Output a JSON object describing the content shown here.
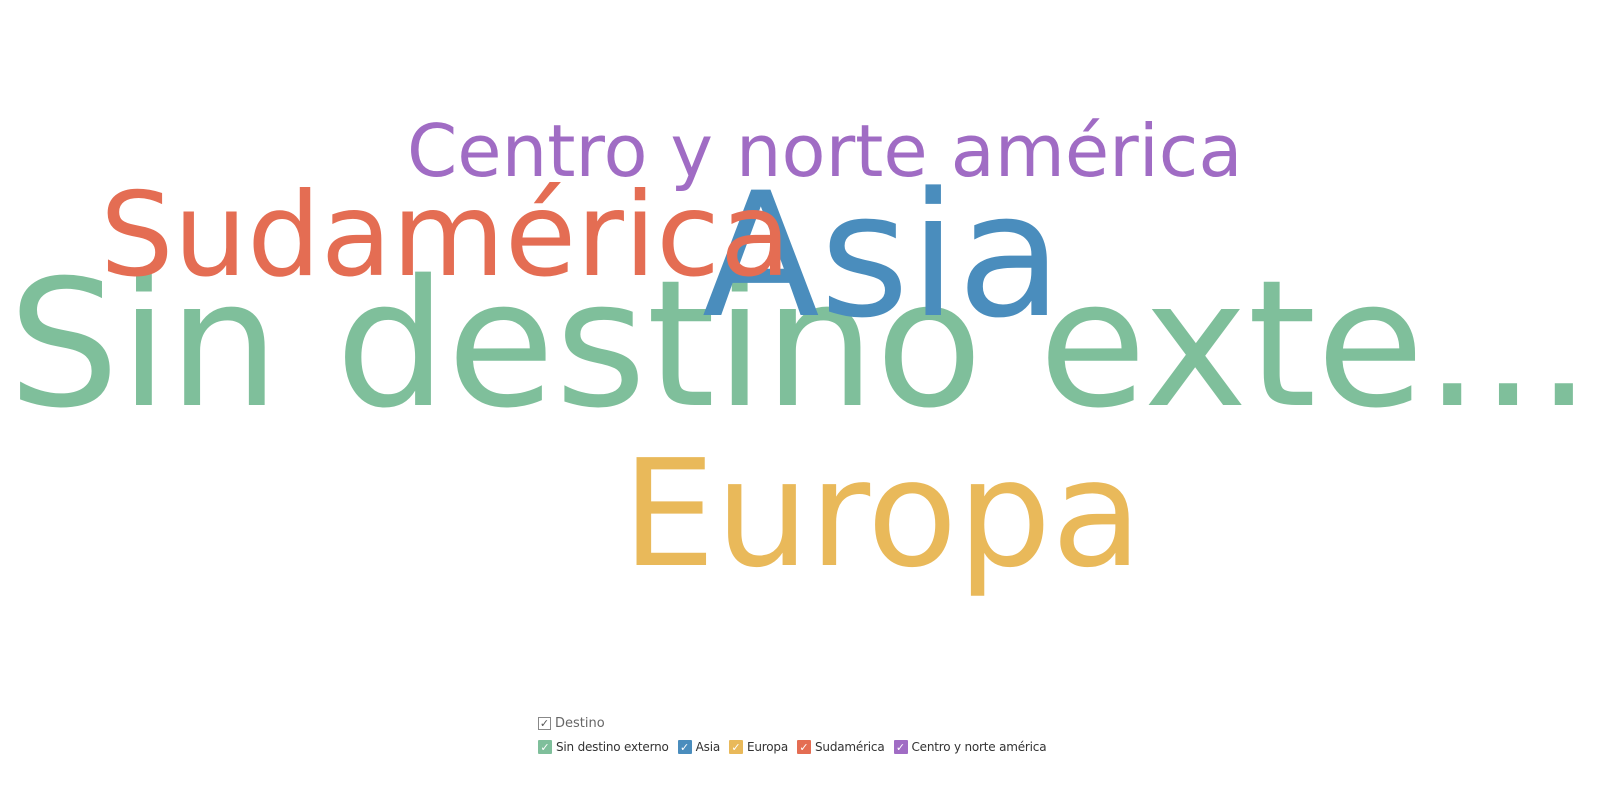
{
  "chart_data": {
    "type": "wordcloud",
    "field": "Destino",
    "words": [
      {
        "text": "Sin destino exte...",
        "full_text": "Sin destino externo",
        "color": "#7FBF9B",
        "rank": 1
      },
      {
        "text": "Europa",
        "color": "#E9B95A",
        "rank": 2
      },
      {
        "text": "Asia",
        "color": "#4A8DBD",
        "rank": 3
      },
      {
        "text": "Sudamérica",
        "color": "#E46D53",
        "rank": 4
      },
      {
        "text": "Centro y norte américa",
        "color": "#A06CC4",
        "rank": 5
      }
    ]
  },
  "legend": {
    "title": "Destino",
    "title_check": "✓",
    "items": [
      {
        "label": "Sin destino externo",
        "color": "#7FBF9B",
        "check": "✓"
      },
      {
        "label": "Asia",
        "color": "#4A8DBD",
        "check": "✓"
      },
      {
        "label": "Europa",
        "color": "#E9B95A",
        "check": "✓"
      },
      {
        "label": "Sudamérica",
        "color": "#E46D53",
        "check": "✓"
      },
      {
        "label": "Centro y norte américa",
        "color": "#A06CC4",
        "check": "✓"
      }
    ]
  }
}
